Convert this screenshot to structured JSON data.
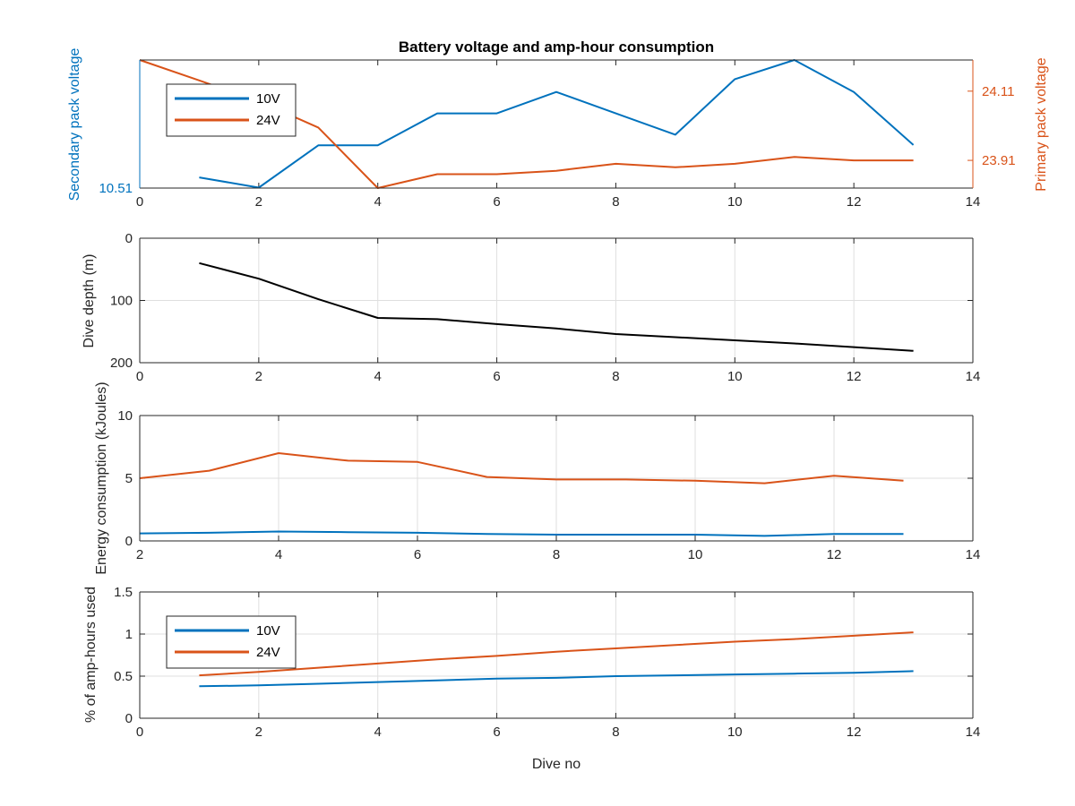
{
  "colors": {
    "v10": "#0072BD",
    "v24": "#D95319",
    "depth": "#000000",
    "grid": "#dfdfdf",
    "axis": "#262626"
  },
  "chart_data": [
    {
      "type": "line",
      "title": "Battery voltage and amp-hour consumption",
      "xlabel": "",
      "ylabel": "Secondary pack voltage",
      "ylabel_right": "Primary pack voltage",
      "xlim": [
        0,
        14
      ],
      "xticks": [
        "0",
        "2",
        "4",
        "6",
        "8",
        "10",
        "12",
        "14"
      ],
      "ylim": [
        10.51,
        10.54
      ],
      "yticks": [
        "10.51"
      ],
      "ylim_right": [
        23.83,
        24.2
      ],
      "yticks_right": [
        "23.91",
        "24.11"
      ],
      "grid": false,
      "legend": [
        "10V",
        "24V"
      ],
      "legend_position": "top-left",
      "series": [
        {
          "name": "10V",
          "axis": "left",
          "x": [
            1,
            2,
            3,
            4,
            5,
            6,
            7,
            8,
            9,
            10,
            11,
            12,
            13
          ],
          "y": [
            10.5125,
            10.5101,
            10.52,
            10.52,
            10.5275,
            10.5275,
            10.5325,
            10.5275,
            10.5225,
            10.5355,
            10.54,
            10.5325,
            10.5201
          ]
        },
        {
          "name": "24V",
          "axis": "right",
          "x": [
            0,
            1,
            2,
            3,
            4,
            5,
            6,
            7,
            8,
            9,
            10,
            11,
            12,
            13
          ],
          "y": [
            24.2,
            24.141,
            24.081,
            24.005,
            23.83,
            23.87,
            23.87,
            23.88,
            23.9,
            23.89,
            23.9,
            23.92,
            23.91,
            23.91
          ]
        }
      ]
    },
    {
      "type": "line",
      "xlabel": "",
      "ylabel": "Dive depth (m)",
      "xlim": [
        0,
        14
      ],
      "xticks": [
        "0",
        "2",
        "4",
        "6",
        "8",
        "10",
        "12",
        "14"
      ],
      "ylim": [
        0,
        200
      ],
      "y_reversed": true,
      "yticks": [
        "0",
        "100",
        "200"
      ],
      "grid": true,
      "series": [
        {
          "x": [
            1,
            2,
            3,
            4,
            5,
            6,
            7,
            8,
            9,
            10,
            11,
            12,
            13
          ],
          "y": [
            40,
            65,
            98,
            128,
            130,
            138,
            145,
            154,
            159,
            164,
            169,
            175,
            181
          ]
        }
      ]
    },
    {
      "type": "line",
      "xlabel": "",
      "ylabel": "Energy consumption (kJoules)",
      "xlim": [
        2,
        14
      ],
      "xticks": [
        "2",
        "4",
        "6",
        "8",
        "10",
        "12",
        "14"
      ],
      "ylim": [
        0,
        10
      ],
      "yticks": [
        "0",
        "5",
        "10"
      ],
      "grid": true,
      "series": [
        {
          "name": "10V",
          "x": [
            2,
            3,
            4,
            5,
            6,
            7,
            8,
            9,
            10,
            11,
            12,
            13
          ],
          "y": [
            0.6,
            0.65,
            0.75,
            0.7,
            0.65,
            0.55,
            0.5,
            0.5,
            0.5,
            0.4,
            0.55,
            0.55
          ]
        },
        {
          "name": "24V",
          "x": [
            2,
            3,
            4,
            5,
            6,
            7,
            8,
            9,
            10,
            11,
            12,
            13
          ],
          "y": [
            5.0,
            5.6,
            7.0,
            6.4,
            6.3,
            5.1,
            4.9,
            4.9,
            4.8,
            4.6,
            5.2,
            4.8
          ]
        }
      ]
    },
    {
      "type": "line",
      "xlabel": "Dive no",
      "ylabel": "% of amp-hours used",
      "xlim": [
        0,
        14
      ],
      "xticks": [
        "0",
        "2",
        "4",
        "6",
        "8",
        "10",
        "12",
        "14"
      ],
      "ylim": [
        0,
        1.5
      ],
      "yticks": [
        "0",
        "0.5",
        "1",
        "1.5"
      ],
      "grid": true,
      "legend": [
        "10V",
        "24V"
      ],
      "legend_position": "top-left",
      "series": [
        {
          "name": "10V",
          "x": [
            1,
            2,
            3,
            4,
            5,
            6,
            7,
            8,
            9,
            10,
            11,
            12,
            13
          ],
          "y": [
            0.38,
            0.39,
            0.41,
            0.43,
            0.45,
            0.47,
            0.48,
            0.5,
            0.51,
            0.52,
            0.53,
            0.54,
            0.56
          ]
        },
        {
          "name": "24V",
          "x": [
            1,
            2,
            3,
            4,
            5,
            6,
            7,
            8,
            9,
            10,
            11,
            12,
            13
          ],
          "y": [
            0.51,
            0.55,
            0.6,
            0.65,
            0.7,
            0.74,
            0.79,
            0.83,
            0.87,
            0.91,
            0.94,
            0.98,
            1.02
          ]
        }
      ]
    }
  ]
}
